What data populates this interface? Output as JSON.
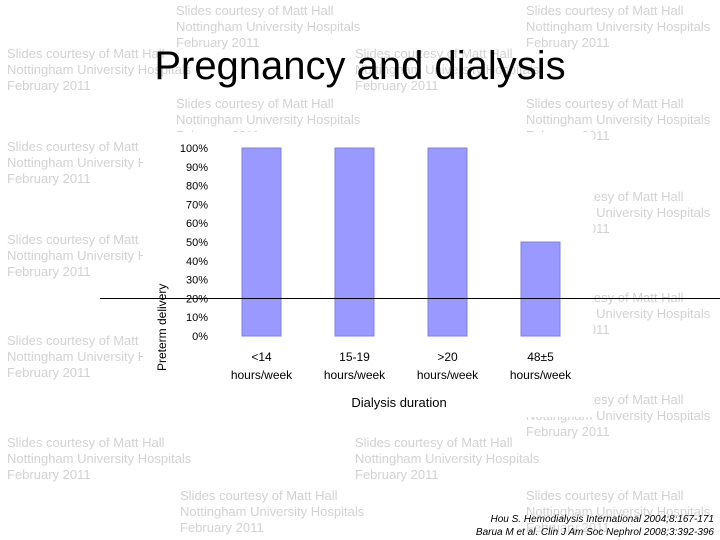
{
  "title": "Pregnancy and dialysis",
  "watermark": {
    "text": "Slides courtesy of Matt Hall\nNottingham University Hospitals\nFebruary 2011"
  },
  "references": [
    "Hou S. Hemodialysis International 2004;8:167-171",
    "Barua M et al. Clin J Am Soc Nephrol 2008;3:392-396"
  ],
  "chart_data": {
    "type": "bar",
    "title": "",
    "categories": [
      [
        "<14",
        "hours/week"
      ],
      [
        "15-19",
        "hours/week"
      ],
      [
        ">20",
        "hours/week"
      ],
      [
        "48±5",
        "hours/week"
      ]
    ],
    "values": [
      100,
      100,
      100,
      50
    ],
    "xlabel": "Dialysis duration",
    "ylabel": "Preterm delivery",
    "ylim": [
      0,
      100
    ],
    "yticks": [
      "0%",
      "10%",
      "20%",
      "30%",
      "40%",
      "50%",
      "60%",
      "70%",
      "80%",
      "90%",
      "100%"
    ],
    "bar_color": "#9999ff",
    "bar_edge_color": "#8080e8"
  }
}
